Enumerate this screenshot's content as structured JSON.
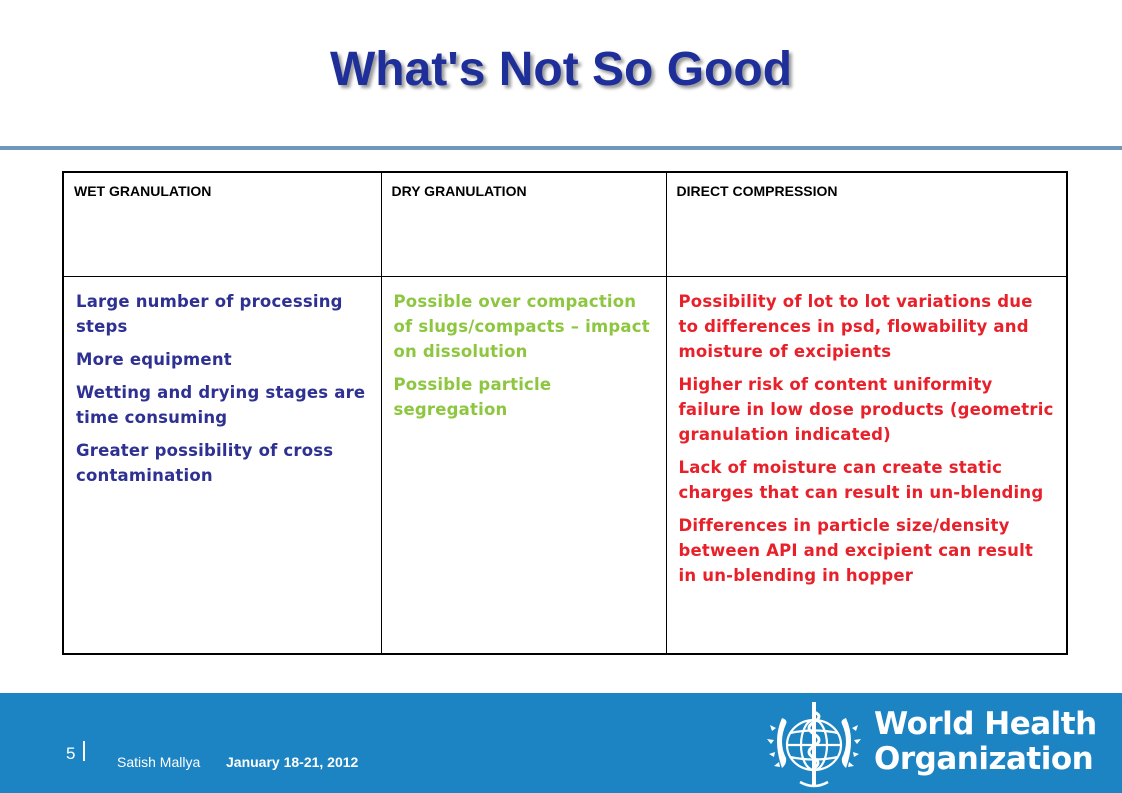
{
  "slide": {
    "title": "What's Not So Good"
  },
  "table": {
    "headers": [
      "WET GRANULATION",
      "DRY GRANULATION",
      "DIRECT COMPRESSION"
    ],
    "wet_granulation": [
      "Large number of processing steps",
      "More equipment",
      "Wetting and drying stages are time consuming",
      "Greater possibility of cross contamination"
    ],
    "dry_granulation": [
      "Possible over compaction of slugs/compacts – impact on dissolution",
      "Possible particle segregation"
    ],
    "direct_compression": [
      "Possibility of lot to lot variations due to differences in psd, flowability and moisture of excipients",
      "Higher risk of content uniformity failure in low dose products (geometric granulation indicated)",
      "Lack of moisture can create static charges that can result in un-blending",
      "Differences in particle size/density between API and excipient can result in un-blending in hopper"
    ],
    "colors": {
      "wet": "#2e3192",
      "dry": "#8dc63f",
      "direct": "#e8202a"
    }
  },
  "footer": {
    "page_number": "5",
    "presenter": "Satish Mallya",
    "date": "January 18-21, 2012",
    "logo_line1": "World Health",
    "logo_line2": "Organization",
    "logo_icon": "who-emblem-icon",
    "background_color": "#1d84c3"
  }
}
